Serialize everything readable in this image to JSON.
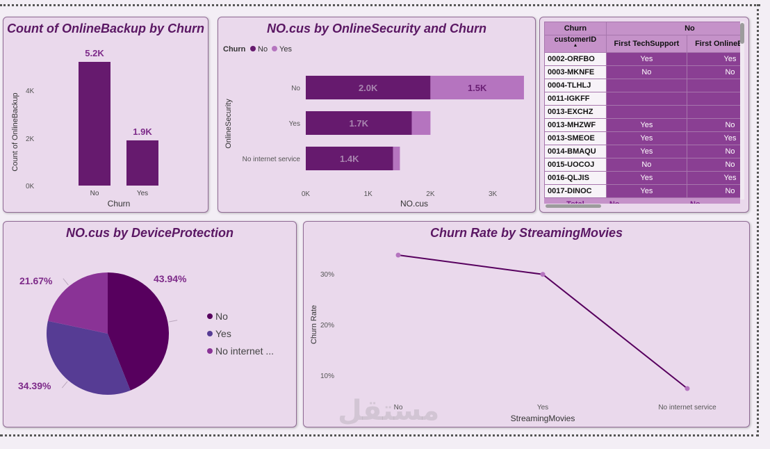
{
  "charts": {
    "backup": {
      "title": "Count of OnlineBackup by Churn",
      "ylabel": "Count of OnlineBackup",
      "xlabel": "Churn",
      "yticks": [
        "0K",
        "2K",
        "4K"
      ]
    },
    "security": {
      "title": "NO.cus by OnlineSecurity and Churn",
      "legend_title": "Churn",
      "legend": [
        "No",
        "Yes"
      ],
      "ylabel": "OnlineSecurity",
      "xlabel": "NO.cus",
      "xticks": [
        "0K",
        "1K",
        "2K",
        "3K"
      ]
    },
    "device": {
      "title": "NO.cus by DeviceProtection",
      "legend": [
        "No",
        "Yes",
        "No internet ..."
      ]
    },
    "streaming": {
      "title": "Churn Rate by StreamingMovies",
      "ylabel": "Churn Rate",
      "xlabel": "StreamingMovies",
      "yticks": [
        "10%",
        "20%",
        "30%"
      ]
    }
  },
  "table": {
    "header_churn": "Churn",
    "header_no": "No",
    "columns": [
      "customerID",
      "First TechSupport",
      "First OnlineBackup"
    ],
    "rows": [
      [
        "0002-ORFBO",
        "Yes",
        "Yes"
      ],
      [
        "0003-MKNFE",
        "No",
        "No"
      ],
      [
        "0004-TLHLJ",
        "",
        ""
      ],
      [
        "0011-IGKFF",
        "",
        ""
      ],
      [
        "0013-EXCHZ",
        "",
        ""
      ],
      [
        "0013-MHZWF",
        "Yes",
        "No"
      ],
      [
        "0013-SMEOE",
        "Yes",
        "Yes"
      ],
      [
        "0014-BMAQU",
        "Yes",
        "No"
      ],
      [
        "0015-UOCOJ",
        "No",
        "No"
      ],
      [
        "0016-QLJIS",
        "Yes",
        "Yes"
      ],
      [
        "0017-DINOC",
        "Yes",
        "No"
      ]
    ],
    "total": [
      "Total",
      "No",
      "No"
    ]
  },
  "watermark": "مستقل",
  "colors": {
    "panel_bg": "#ead9ec",
    "dark_purple": "#661a6e",
    "light_purple": "#b574bf",
    "pie_no": "#57005e",
    "pie_yes": "#563c94",
    "pie_nointernet": "#8a3396",
    "line": "#57005e",
    "label": "#7d2a89"
  },
  "chart_data": [
    {
      "type": "bar",
      "title": "Count of OnlineBackup by Churn",
      "xlabel": "Churn",
      "ylabel": "Count of OnlineBackup",
      "categories": [
        "No",
        "Yes"
      ],
      "values": [
        5200,
        1900
      ],
      "data_labels": [
        "5.2K",
        "1.9K"
      ],
      "ylim": [
        0,
        5200
      ],
      "grid": false
    },
    {
      "type": "bar",
      "orientation": "horizontal",
      "stacked": true,
      "title": "NO.cus by OnlineSecurity and Churn",
      "xlabel": "NO.cus",
      "ylabel": "OnlineSecurity",
      "categories": [
        "No",
        "Yes",
        "No internet service"
      ],
      "series": [
        {
          "name": "No",
          "values": [
            2000,
            1700,
            1400
          ],
          "labels": [
            "2.0K",
            "1.7K",
            "1.4K"
          ]
        },
        {
          "name": "Yes",
          "values": [
            1500,
            300,
            110
          ],
          "labels": [
            "1.5K",
            "",
            ""
          ]
        }
      ],
      "xlim": [
        0,
        3500
      ],
      "legend_position": "top-left"
    },
    {
      "type": "pie",
      "title": "NO.cus by DeviceProtection",
      "categories": [
        "No",
        "Yes",
        "No internet ..."
      ],
      "values": [
        43.94,
        34.39,
        21.67
      ],
      "labels": [
        "43.94%",
        "34.39%",
        "21.67%"
      ],
      "legend_position": "right"
    },
    {
      "type": "line",
      "title": "Churn Rate by StreamingMovies",
      "xlabel": "StreamingMovies",
      "ylabel": "Churn Rate",
      "x": [
        "No",
        "Yes",
        "No internet service"
      ],
      "values": [
        33.7,
        29.9,
        7.4
      ],
      "unit": "%",
      "ylim": [
        5,
        35
      ]
    }
  ]
}
